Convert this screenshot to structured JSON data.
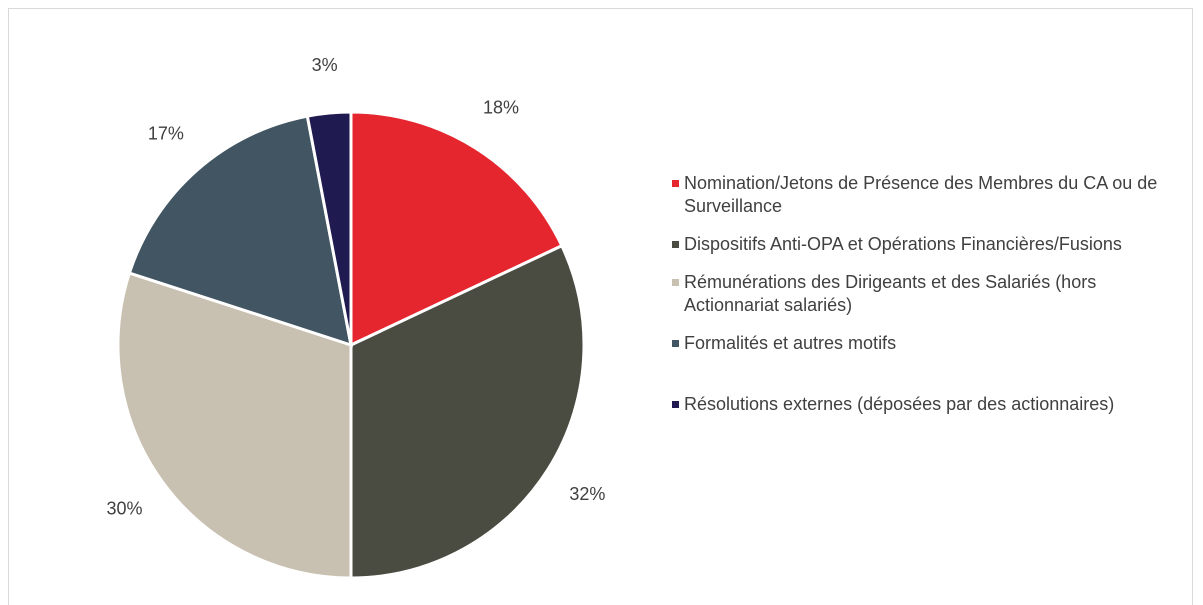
{
  "chart_data": {
    "type": "pie",
    "categories": [
      "Nomination/Jetons de Présence des Membres du CA ou de Surveillance",
      "Dispositifs Anti-OPA et Opérations Financières/Fusions",
      "Rémunérations des Dirigeants et des Salariés (hors Actionnariat salariés)",
      "Formalités et autres motifs",
      "Résolutions externes (déposées par des actionnaires)"
    ],
    "values": [
      18,
      32,
      30,
      17,
      3
    ],
    "value_labels": [
      "18%",
      "32%",
      "30%",
      "17%",
      "3%"
    ],
    "colors": [
      "#e5262f",
      "#4a4c42",
      "#c8c0b0",
      "#425563",
      "#1f1a4f"
    ],
    "legend": "right"
  }
}
